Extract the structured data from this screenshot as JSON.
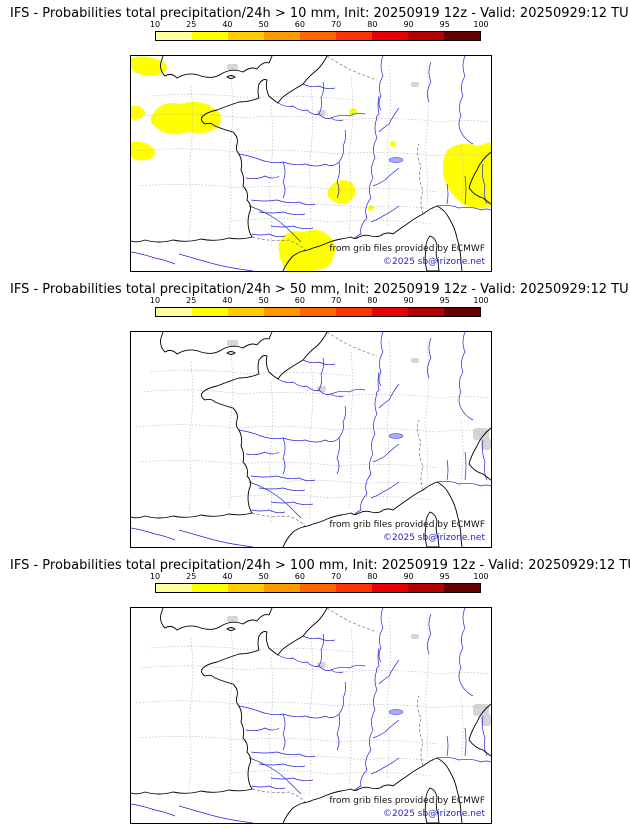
{
  "colorbar": {
    "ticks": [
      "10",
      "25",
      "40",
      "50",
      "60",
      "70",
      "80",
      "90",
      "95",
      "100"
    ],
    "colors": [
      "#ffffa0",
      "#ffff00",
      "#ffcc00",
      "#ff9900",
      "#ff6600",
      "#ff3300",
      "#e60000",
      "#b30000",
      "#660000"
    ]
  },
  "map_style": {
    "coastline_color": "#000000",
    "river_color": "#2222dd",
    "admin_border_color": "#b4b4b4",
    "national_border_color": "#777777",
    "probability_fill": "#ffff00",
    "urban_fill": "#c8c8c8"
  },
  "panels": [
    {
      "title": "IFS - Probabilities total precipitation/24h > 10 mm, Init: 20250919 12z - Valid: 20250929:12 TU",
      "attribution": "from grib files provided by ECMWF",
      "copyright": "©2025 sb@irizone.net",
      "overlay": "true"
    },
    {
      "title": "IFS - Probabilities total precipitation/24h > 50 mm, Init: 20250919 12z - Valid: 20250929:12 TU",
      "attribution": "from grib files provided by ECMWF",
      "copyright": "©2025 sb@irizone.net",
      "overlay": "false"
    },
    {
      "title": "IFS - Probabilities total precipitation/24h > 100 mm, Init: 20250919 12z - Valid: 20250929:12 TU",
      "attribution": "from grib files provided by ECMWF",
      "copyright": "©2025 sb@irizone.net",
      "overlay": "false"
    }
  ]
}
